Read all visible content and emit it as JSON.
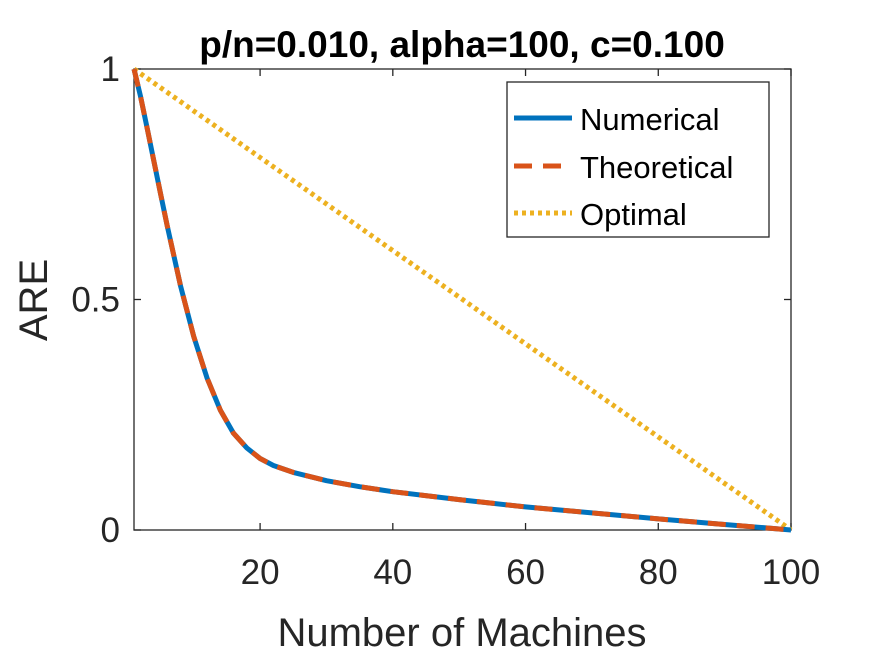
{
  "chart_data": {
    "type": "line",
    "title": "p/n=0.010, alpha=100, c=0.100",
    "xlabel": "Number of Machines",
    "ylabel": "ARE",
    "xlim": [
      1,
      100
    ],
    "ylim": [
      0,
      1
    ],
    "xticks": [
      20,
      40,
      60,
      80,
      100
    ],
    "yticks": [
      0,
      0.5,
      1
    ],
    "ytick_labels": [
      "0",
      "0.5",
      "1"
    ],
    "grid": false,
    "legend_position": "top-right",
    "x": [
      1,
      2,
      3,
      4,
      5,
      6,
      8,
      10,
      12,
      14,
      16,
      18,
      20,
      22,
      25,
      30,
      35,
      40,
      50,
      60,
      70,
      80,
      90,
      95,
      100
    ],
    "series": [
      {
        "name": "Numerical",
        "color": "#0072BD",
        "style": "solid",
        "values": [
          1.0,
          0.94,
          0.87,
          0.8,
          0.73,
          0.66,
          0.53,
          0.42,
          0.33,
          0.26,
          0.21,
          0.178,
          0.155,
          0.14,
          0.125,
          0.107,
          0.094,
          0.083,
          0.066,
          0.05,
          0.037,
          0.024,
          0.012,
          0.006,
          0.0
        ]
      },
      {
        "name": "Theoretical",
        "color": "#D95319",
        "style": "dashed",
        "values": [
          1.0,
          0.94,
          0.87,
          0.8,
          0.73,
          0.66,
          0.53,
          0.42,
          0.33,
          0.26,
          0.21,
          0.178,
          0.155,
          0.14,
          0.125,
          0.107,
          0.094,
          0.083,
          0.066,
          0.05,
          0.037,
          0.024,
          0.012,
          0.006,
          0.0
        ]
      },
      {
        "name": "Optimal",
        "color": "#EDB120",
        "style": "dotted",
        "values": [
          1.0,
          0.9899,
          0.9798,
          0.9697,
          0.9596,
          0.9495,
          0.9293,
          0.9091,
          0.8889,
          0.8687,
          0.8485,
          0.8283,
          0.8081,
          0.7879,
          0.7576,
          0.7071,
          0.6566,
          0.6061,
          0.5051,
          0.404,
          0.303,
          0.202,
          0.101,
          0.0505,
          0.0
        ]
      }
    ]
  }
}
